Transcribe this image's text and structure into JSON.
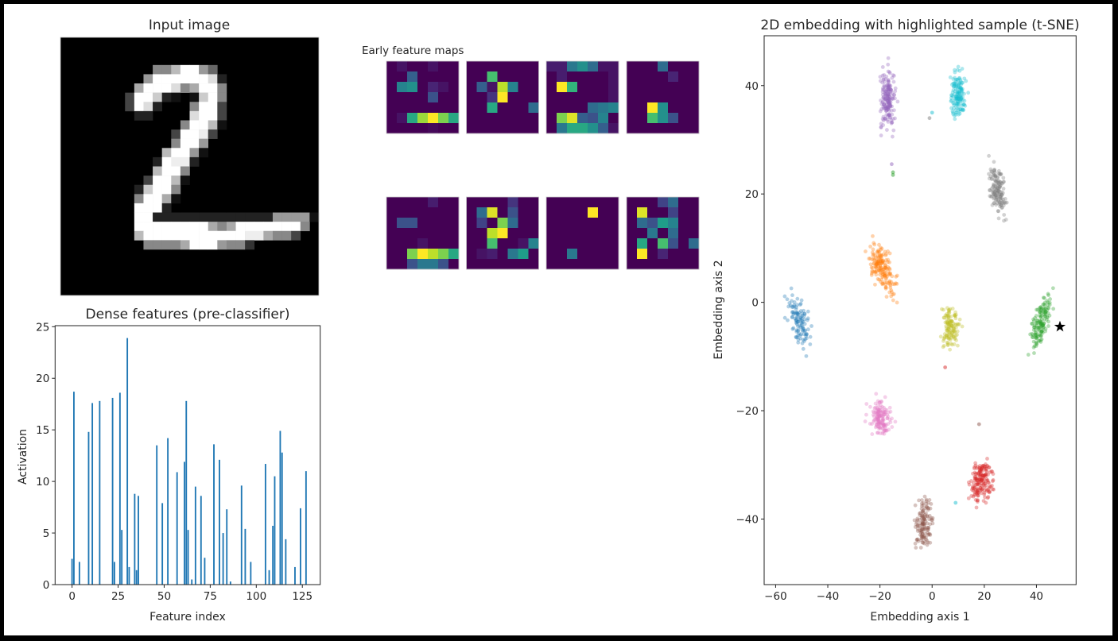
{
  "chart_data": [
    {
      "type": "heatmap",
      "title": "Input image",
      "colormap": "gray",
      "pixels_hex_rows": [
        "0000000000000000000000000000",
        "0000000000000000000000000000",
        "0000000000000000000000000000",
        "000000000088bff9600000000000",
        "0000000009ffffffd20000000000",
        "00000000afffd8aff80000000000",
        "00000004ffc2101cf80000000000",
        "00000004fd20008ff40000000000",
        "0000000022000 0dff40000000000",
        "00000000000008ffb10000000000",
        "0000000000004ffe400000000000",
        "0000000000008ff9000000000000",
        "00000000000bff91000000000000",
        "00000000002fee20000000000000",
        "0000000000bff800000000000000",
        "0000000004ffb100000000000000",
        "000000002cff8000000000000000",
        "000000008ffa1000000000000000",
        "00000000fff20000000000000000",
        "00000000ff222222222222299991 0",
        "00000000ffffffffa8afffffff80",
        "00000000bfffffffffffeea88400",
        "0000000008888afff98830000000",
        "0000000000000000000000000000",
        "0000000000000000000000000000",
        "0000000000000000000000000000",
        "0000000000000000000000000000",
        "0000000000000000000000000000"
      ]
    },
    {
      "type": "heatmap",
      "title": "Early feature maps",
      "colormap": "viridis",
      "maps": [
        [
          [
            0,
            0.05,
            0,
            0,
            0.05,
            0,
            0
          ],
          [
            0,
            0,
            0.3,
            0,
            0,
            0,
            0
          ],
          [
            0,
            0.45,
            0.5,
            0,
            0.1,
            0.05,
            0
          ],
          [
            0,
            0,
            0,
            0,
            0.25,
            0,
            0
          ],
          [
            0,
            0,
            0,
            0,
            0,
            0,
            0
          ],
          [
            0,
            0.05,
            0.6,
            0.85,
            1,
            0.8,
            0.6
          ],
          [
            0,
            0,
            0,
            0,
            0.02,
            0,
            0
          ]
        ],
        [
          [
            0,
            0,
            0,
            0,
            0,
            0,
            0
          ],
          [
            0,
            0,
            0.7,
            0,
            0,
            0,
            0
          ],
          [
            0,
            0.3,
            0.05,
            0.9,
            0.45,
            0,
            0
          ],
          [
            0,
            0,
            0.15,
            1,
            0,
            0,
            0
          ],
          [
            0,
            0,
            0.6,
            0,
            0,
            0,
            0.35
          ],
          [
            0,
            0,
            0,
            0,
            0,
            0,
            0
          ],
          [
            0,
            0,
            0,
            0,
            0,
            0,
            0
          ]
        ],
        [
          [
            0.08,
            0.08,
            0.4,
            0.5,
            0.35,
            0.05,
            0.05
          ],
          [
            0,
            0.08,
            0,
            0,
            0,
            0,
            0.05
          ],
          [
            0,
            1,
            0.65,
            0,
            0,
            0,
            0.05
          ],
          [
            0,
            0,
            0,
            0,
            0,
            0,
            0.05
          ],
          [
            0,
            0,
            0,
            0,
            0.35,
            0.4,
            0.45
          ],
          [
            0,
            0.8,
            0.95,
            0.3,
            0.25,
            0.45,
            0
          ],
          [
            0,
            0.4,
            0.6,
            0.6,
            0.5,
            0.3,
            0.05
          ]
        ],
        [
          [
            0,
            0,
            0,
            0.35,
            0,
            0,
            0
          ],
          [
            0,
            0,
            0,
            0,
            0.1,
            0,
            0
          ],
          [
            0,
            0,
            0,
            0,
            0,
            0,
            0
          ],
          [
            0,
            0,
            0,
            0,
            0,
            0,
            0
          ],
          [
            0,
            0,
            1,
            0.5,
            0,
            0,
            0
          ],
          [
            0,
            0,
            0.7,
            0.5,
            0.25,
            0,
            0
          ],
          [
            0,
            0,
            0,
            0,
            0,
            0,
            0
          ]
        ],
        [
          [
            0,
            0,
            0,
            0,
            0.08,
            0,
            0
          ],
          [
            0,
            0,
            0,
            0,
            0,
            0,
            0
          ],
          [
            0,
            0.25,
            0.25,
            0,
            0,
            0,
            0
          ],
          [
            0,
            0,
            0,
            0,
            0,
            0,
            0
          ],
          [
            0,
            0,
            0,
            0.05,
            0,
            0,
            0
          ],
          [
            0,
            0,
            0.8,
            1,
            0.9,
            0.8,
            0.6
          ],
          [
            0,
            0,
            0.25,
            0.4,
            0.4,
            0.25,
            0
          ]
        ],
        [
          [
            0,
            0,
            0,
            0,
            0.15,
            0,
            0
          ],
          [
            0,
            0.35,
            0.95,
            0,
            0.25,
            0,
            0
          ],
          [
            0,
            0.2,
            0,
            0.8,
            0.35,
            0,
            0
          ],
          [
            0,
            0,
            0.9,
            1,
            0,
            0,
            0
          ],
          [
            0,
            0,
            0.7,
            0,
            0,
            0.05,
            0.45
          ],
          [
            0,
            0.05,
            0.08,
            0,
            0.4,
            0.55,
            0
          ],
          [
            0,
            0,
            0,
            0,
            0,
            0,
            0
          ]
        ],
        [
          [
            0,
            0,
            0,
            0,
            0,
            0,
            0
          ],
          [
            0,
            0,
            0,
            0,
            1,
            0,
            0
          ],
          [
            0,
            0,
            0,
            0,
            0,
            0,
            0
          ],
          [
            0,
            0,
            0,
            0,
            0,
            0,
            0
          ],
          [
            0,
            0,
            0,
            0,
            0,
            0,
            0
          ],
          [
            0,
            0,
            0.4,
            0,
            0,
            0,
            0
          ],
          [
            0,
            0,
            0,
            0,
            0,
            0,
            0
          ]
        ],
        [
          [
            0,
            0,
            0,
            0.2,
            0.35,
            0,
            0
          ],
          [
            0,
            0.95,
            0,
            0,
            0.2,
            0,
            0
          ],
          [
            0,
            0.35,
            0.25,
            0.55,
            0.45,
            0,
            0
          ],
          [
            0,
            0,
            0.4,
            0,
            0.35,
            0,
            0
          ],
          [
            0,
            0.6,
            0,
            0.7,
            0.25,
            0,
            0.35
          ],
          [
            0,
            1,
            0,
            0.1,
            0,
            0,
            0
          ],
          [
            0,
            0,
            0,
            0,
            0,
            0,
            0
          ]
        ]
      ]
    },
    {
      "type": "bar",
      "title": "Dense features (pre-classifier)",
      "xlabel": "Feature index",
      "ylabel": "Activation",
      "xlim": [
        -9.2,
        134.7
      ],
      "ylim": [
        0,
        25.1
      ],
      "xticks": [
        0,
        25,
        50,
        75,
        100,
        125
      ],
      "yticks": [
        0,
        5,
        10,
        15,
        20,
        25
      ],
      "color": "#1f77b4",
      "bars": [
        [
          0,
          2.5
        ],
        [
          1,
          18.7
        ],
        [
          4,
          2.2
        ],
        [
          9,
          14.8
        ],
        [
          11,
          17.6
        ],
        [
          15,
          17.8
        ],
        [
          22,
          18.1
        ],
        [
          23,
          2.2
        ],
        [
          26,
          18.6
        ],
        [
          27,
          5.3
        ],
        [
          30,
          23.9
        ],
        [
          31,
          1.7
        ],
        [
          34,
          8.8
        ],
        [
          35,
          1.4
        ],
        [
          36,
          8.6
        ],
        [
          46,
          13.5
        ],
        [
          49,
          7.9
        ],
        [
          52,
          14.2
        ],
        [
          57,
          10.9
        ],
        [
          61,
          11.9
        ],
        [
          62,
          17.8
        ],
        [
          63,
          5.3
        ],
        [
          65,
          0.5
        ],
        [
          67,
          9.5
        ],
        [
          70,
          8.6
        ],
        [
          72,
          2.6
        ],
        [
          77,
          13.6
        ],
        [
          80,
          12.1
        ],
        [
          82,
          5.0
        ],
        [
          84,
          7.3
        ],
        [
          86,
          0.3
        ],
        [
          92,
          9.6
        ],
        [
          94,
          5.4
        ],
        [
          97,
          2.2
        ],
        [
          105,
          11.7
        ],
        [
          107,
          1.4
        ],
        [
          109,
          5.7
        ],
        [
          110,
          10.5
        ],
        [
          113,
          14.9
        ],
        [
          114,
          12.8
        ],
        [
          116,
          4.4
        ],
        [
          121,
          1.7
        ],
        [
          124,
          7.4
        ],
        [
          127,
          11.0
        ]
      ]
    },
    {
      "type": "scatter",
      "title": "2D embedding with highlighted sample (t-SNE)",
      "xlabel": "Embedding axis 1",
      "ylabel": "Embedding axis 2",
      "xlim": [
        -64.4,
        55.2
      ],
      "ylim": [
        -52.1,
        49.2
      ],
      "xticks": [
        -60,
        -40,
        -20,
        0,
        20,
        40
      ],
      "yticks": [
        -40,
        -20,
        0,
        20,
        40
      ],
      "clusters": [
        {
          "color": "#1f77b4",
          "center": [
            -51,
            -3.5
          ],
          "spread": [
            4,
            3.2
          ],
          "tilt": -0.5,
          "count": 110
        },
        {
          "color": "#ff7f0e",
          "center": [
            -19,
            6
          ],
          "spread": [
            5,
            2.8
          ],
          "tilt": -0.45,
          "count": 170
        },
        {
          "color": "#2ca02c",
          "center": [
            41.5,
            -4
          ],
          "spread": [
            3.8,
            3
          ],
          "tilt": 0.75,
          "count": 140
        },
        {
          "color": "#d62728",
          "center": [
            19,
            -33
          ],
          "spread": [
            3.8,
            3.2
          ],
          "tilt": 0.1,
          "count": 170
        },
        {
          "color": "#9467bd",
          "center": [
            -17,
            37.5
          ],
          "spread": [
            2.8,
            4.2
          ],
          "tilt": 0,
          "count": 180
        },
        {
          "color": "#8c564b",
          "center": [
            -3,
            -40.5
          ],
          "spread": [
            3,
            3.5
          ],
          "tilt": 0.2,
          "count": 130
        },
        {
          "color": "#e377c2",
          "center": [
            -20,
            -21.5
          ],
          "spread": [
            4,
            2.6
          ],
          "tilt": 0,
          "count": 140
        },
        {
          "color": "#7f7f7f",
          "center": [
            25,
            21
          ],
          "spread": [
            3.2,
            3.3
          ],
          "tilt": -0.6,
          "count": 140
        },
        {
          "color": "#bcbd22",
          "center": [
            7,
            -4.5
          ],
          "spread": [
            3.2,
            3.2
          ],
          "tilt": 0,
          "count": 120
        },
        {
          "color": "#17becf",
          "center": [
            10,
            38.5
          ],
          "spread": [
            2.8,
            3.4
          ],
          "tilt": 0,
          "count": 140
        }
      ],
      "outliers": [
        [
          -15,
          24,
          "#2ca02c"
        ],
        [
          -15,
          23.5,
          "#2ca02c"
        ],
        [
          -15.5,
          25.5,
          "#9467bd"
        ],
        [
          0,
          35,
          "#17becf"
        ],
        [
          -1,
          34,
          "#7f7f7f"
        ],
        [
          18,
          -22.5,
          "#8c564b"
        ],
        [
          5,
          -12,
          "#d62728"
        ],
        [
          9,
          -37,
          "#17becf"
        ]
      ],
      "highlighted_sample": {
        "x": 49,
        "y": -4.5,
        "marker": "star",
        "color": "#000000"
      }
    }
  ]
}
